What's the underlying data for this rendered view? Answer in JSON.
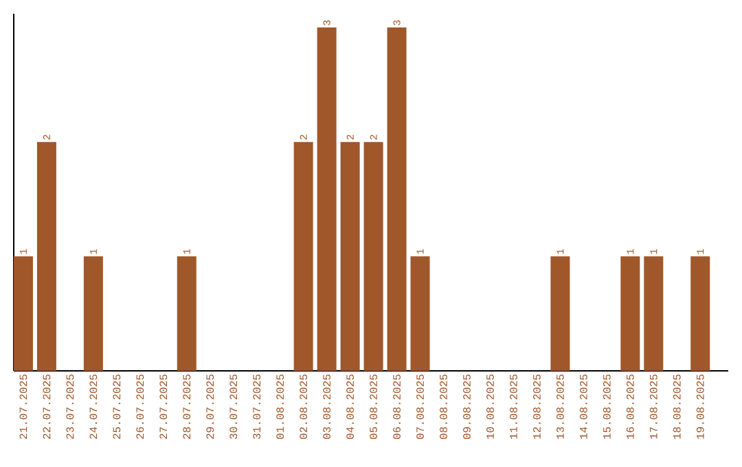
{
  "chart_data": {
    "type": "bar",
    "color": "#a0572a",
    "categories": [
      "21.07.2025",
      "22.07.2025",
      "23.07.2025",
      "24.07.2025",
      "25.07.2025",
      "26.07.2025",
      "27.07.2025",
      "28.07.2025",
      "29.07.2025",
      "30.07.2025",
      "31.07.2025",
      "01.08.2025",
      "02.08.2025",
      "03.08.2025",
      "04.08.2025",
      "05.08.2025",
      "06.08.2025",
      "07.08.2025",
      "08.08.2025",
      "09.08.2025",
      "10.08.2025",
      "11.08.2025",
      "12.08.2025",
      "13.08.2025",
      "14.08.2025",
      "15.08.2025",
      "16.08.2025",
      "17.08.2025",
      "18.08.2025",
      "19.08.2025"
    ],
    "values": [
      1,
      2,
      0,
      1,
      0,
      0,
      0,
      1,
      0,
      0,
      0,
      0,
      2,
      3,
      2,
      2,
      3,
      1,
      0,
      0,
      0,
      0,
      0,
      1,
      0,
      0,
      1,
      1,
      0,
      1
    ],
    "value_labels": [
      "1",
      "2",
      null,
      "1",
      null,
      null,
      null,
      "1",
      null,
      null,
      null,
      null,
      "2",
      "3",
      "2",
      "2",
      "3",
      "1",
      null,
      null,
      null,
      null,
      null,
      "1",
      null,
      null,
      "1",
      "1",
      null,
      "1"
    ],
    "grid": false
  }
}
